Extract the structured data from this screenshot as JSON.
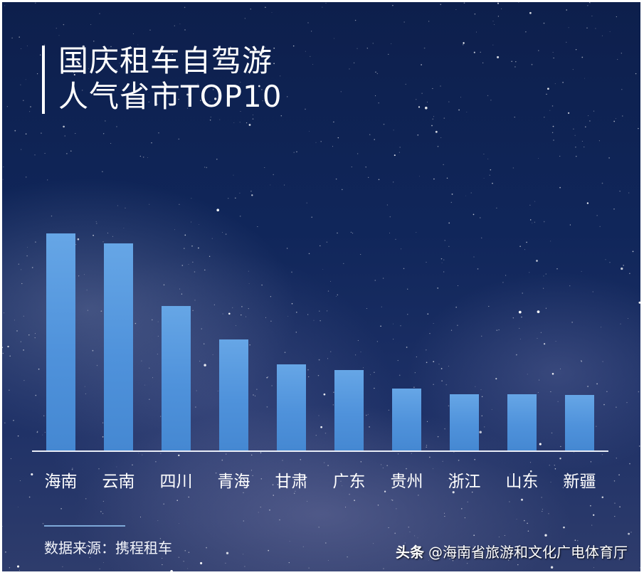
{
  "title": {
    "line1": "国庆租车自驾游",
    "line2": "人气省市TOP10"
  },
  "footer": {
    "source": "数据来源：携程租车",
    "watermark_brand": "头条",
    "watermark_account": "@海南省旅游和文化广电体育厅"
  },
  "colors": {
    "background": "#10265a",
    "bar": "#4f92db",
    "bar_top": "#66a6e6",
    "baseline": "#e8ecf6",
    "divider": "#7ea9d9",
    "text": "#ffffff"
  },
  "chart_data": {
    "type": "bar",
    "title": "国庆租车自驾游人气省市TOP10",
    "xlabel": "",
    "ylabel": "",
    "categories": [
      "海南",
      "云南",
      "四川",
      "青海",
      "甘肃",
      "广东",
      "贵州",
      "浙江",
      "山东",
      "新疆"
    ],
    "values": [
      100,
      95.4,
      66.6,
      51.1,
      39.7,
      37.0,
      28.5,
      25.9,
      25.9,
      25.6
    ],
    "value_note": "No y-axis or data labels shown; values are relative bar heights normalized to max = 100",
    "ylim": [
      0,
      100
    ],
    "grid": false,
    "legend": null,
    "source": "数据来源：携程租车"
  }
}
